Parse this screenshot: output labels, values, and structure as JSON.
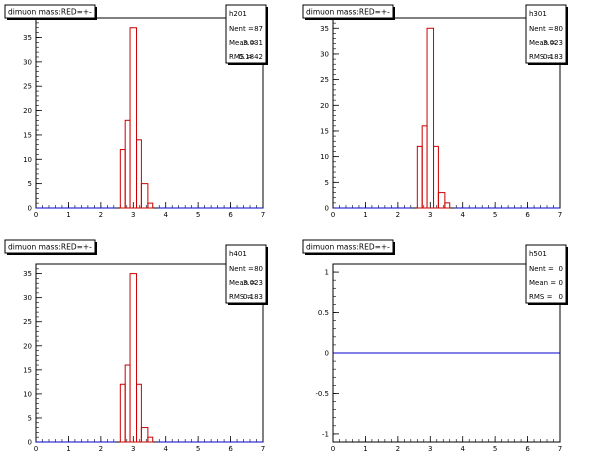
{
  "chart_data": [
    {
      "type": "histogram",
      "title": "dimuon mass:RED=+-",
      "stats": {
        "name": "h201",
        "rows": [
          {
            "label": "Nent =",
            "value": "87"
          },
          {
            "label": "Mean =",
            "value": "3.031"
          },
          {
            "label": "RMS  =",
            "value": "0.1842"
          }
        ]
      },
      "xlim": [
        0,
        7
      ],
      "ylim": [
        0,
        39
      ],
      "xticks": [
        0,
        1,
        2,
        3,
        4,
        5,
        6,
        7
      ],
      "yticks": [
        0,
        5,
        10,
        15,
        20,
        25,
        30,
        35
      ],
      "bins": [
        {
          "x0": 2.45,
          "x1": 2.6,
          "value": 0
        },
        {
          "x0": 2.6,
          "x1": 2.75,
          "value": 12
        },
        {
          "x0": 2.75,
          "x1": 2.9,
          "value": 18
        },
        {
          "x0": 2.9,
          "x1": 3.1,
          "value": 37
        },
        {
          "x0": 3.1,
          "x1": 3.25,
          "value": 14
        },
        {
          "x0": 3.25,
          "x1": 3.45,
          "value": 5
        },
        {
          "x0": 3.45,
          "x1": 3.6,
          "value": 1
        },
        {
          "x0": 3.6,
          "x1": 3.75,
          "value": 0
        }
      ],
      "line_color": "#cc0000",
      "axis_color": "#0000cc"
    },
    {
      "type": "histogram",
      "title": "dimuon mass:RED=+-",
      "stats": {
        "name": "h301",
        "rows": [
          {
            "label": "Nent =",
            "value": "80"
          },
          {
            "label": "Mean =",
            "value": "3.023"
          },
          {
            "label": "RMS  =",
            "value": "0.183"
          }
        ]
      },
      "xlim": [
        0,
        7
      ],
      "ylim": [
        0,
        37
      ],
      "xticks": [
        0,
        1,
        2,
        3,
        4,
        5,
        6,
        7
      ],
      "yticks": [
        0,
        5,
        10,
        15,
        20,
        25,
        30,
        35
      ],
      "bins": [
        {
          "x0": 2.45,
          "x1": 2.6,
          "value": 0
        },
        {
          "x0": 2.6,
          "x1": 2.75,
          "value": 12
        },
        {
          "x0": 2.75,
          "x1": 2.9,
          "value": 16
        },
        {
          "x0": 2.9,
          "x1": 3.1,
          "value": 35
        },
        {
          "x0": 3.1,
          "x1": 3.25,
          "value": 12
        },
        {
          "x0": 3.25,
          "x1": 3.45,
          "value": 3
        },
        {
          "x0": 3.45,
          "x1": 3.6,
          "value": 1
        },
        {
          "x0": 3.6,
          "x1": 3.75,
          "value": 0
        }
      ],
      "line_color": "#cc0000",
      "axis_color": "#0000cc"
    },
    {
      "type": "histogram",
      "title": "dimuon mass:RED=+-",
      "stats": {
        "name": "h401",
        "rows": [
          {
            "label": "Nent =",
            "value": "80"
          },
          {
            "label": "Mean =",
            "value": "3.023"
          },
          {
            "label": "RMS  =",
            "value": "0.183"
          }
        ]
      },
      "xlim": [
        0,
        7
      ],
      "ylim": [
        0,
        37
      ],
      "xticks": [
        0,
        1,
        2,
        3,
        4,
        5,
        6,
        7
      ],
      "yticks": [
        0,
        5,
        10,
        15,
        20,
        25,
        30,
        35
      ],
      "bins": [
        {
          "x0": 2.45,
          "x1": 2.6,
          "value": 0
        },
        {
          "x0": 2.6,
          "x1": 2.75,
          "value": 12
        },
        {
          "x0": 2.75,
          "x1": 2.9,
          "value": 16
        },
        {
          "x0": 2.9,
          "x1": 3.1,
          "value": 35
        },
        {
          "x0": 3.1,
          "x1": 3.25,
          "value": 12
        },
        {
          "x0": 3.25,
          "x1": 3.45,
          "value": 3
        },
        {
          "x0": 3.45,
          "x1": 3.6,
          "value": 1
        },
        {
          "x0": 3.6,
          "x1": 3.75,
          "value": 0
        }
      ],
      "line_color": "#cc0000",
      "axis_color": "#0000cc"
    },
    {
      "type": "histogram",
      "title": "dimuon mass:RED=+-",
      "stats": {
        "name": "h501",
        "rows": [
          {
            "label": "Nent =",
            "value": "0"
          },
          {
            "label": "Mean =",
            "value": "0"
          },
          {
            "label": "RMS  =",
            "value": "0"
          }
        ]
      },
      "xlim": [
        0,
        7
      ],
      "ylim": [
        -1.1,
        1.1
      ],
      "xticks": [
        0,
        1,
        2,
        3,
        4,
        5,
        6,
        7
      ],
      "yticks": [
        -1,
        -0.5,
        0,
        0.5,
        1
      ],
      "bins": [],
      "flat_line": 0,
      "line_color": "#cc0000",
      "axis_color": "#0000cc"
    }
  ]
}
